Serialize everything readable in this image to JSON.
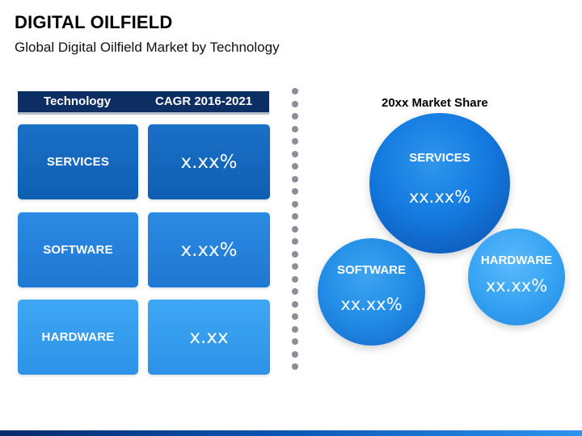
{
  "header": {
    "title": "DIGITAL OILFIELD",
    "subtitle": "Global Digital Oilfield Market by Technology"
  },
  "table": {
    "headers": [
      "Technology",
      "CAGR 2016-2021"
    ],
    "rows": [
      {
        "technology": "SERVICES",
        "cagr": "x.xx%"
      },
      {
        "technology": "SOFTWARE",
        "cagr": "x.xx%"
      },
      {
        "technology": "HARDWARE",
        "cagr": "x.xx"
      }
    ]
  },
  "market_share": {
    "title": "20xx Market Share",
    "items": [
      {
        "name": "SERVICES",
        "value": "xx.xx%"
      },
      {
        "name": "SOFTWARE",
        "value": "xx.xx%"
      },
      {
        "name": "HARDWARE",
        "value": "xx.xx%"
      }
    ]
  },
  "colors": {
    "header_bg": "#0d2e63",
    "services_dark": "#1166b8",
    "software_mid": "#2b86de",
    "hardware_light": "#3ba6f1",
    "divider_dot": "#8a8f98"
  }
}
